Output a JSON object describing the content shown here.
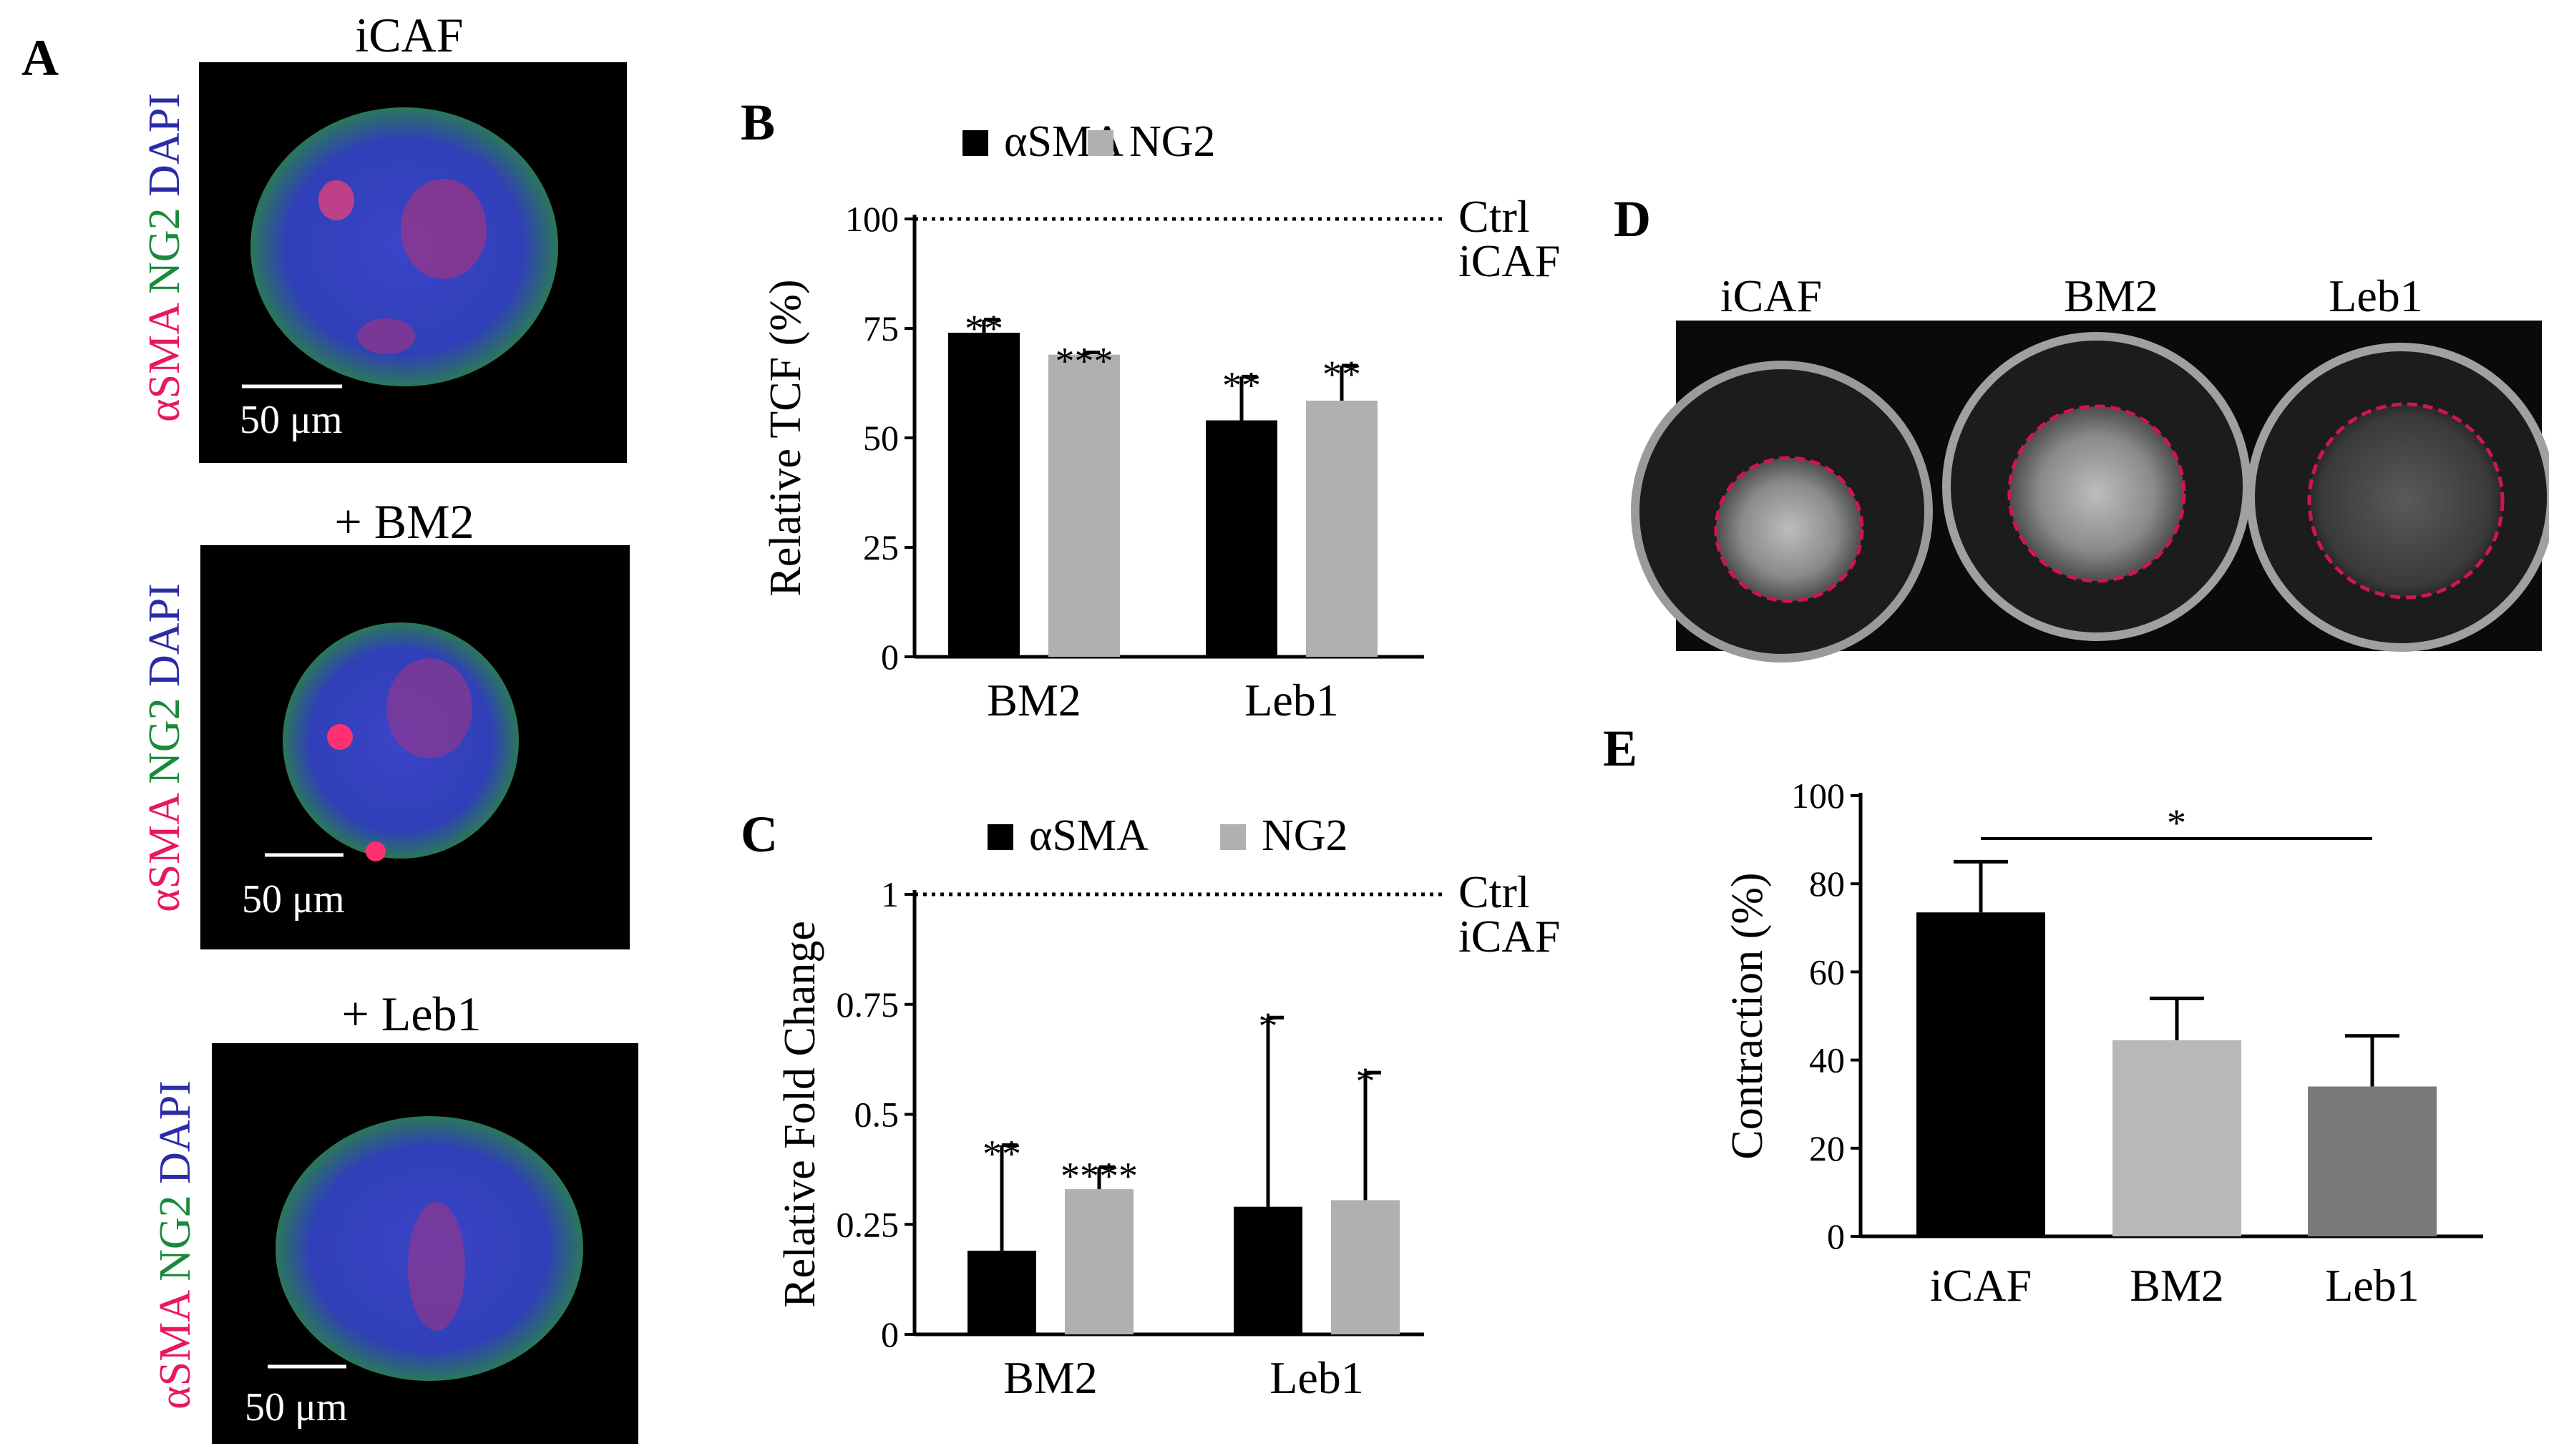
{
  "panel_labels": {
    "A": "A",
    "B": "B",
    "C": "C",
    "D": "D",
    "E": "E"
  },
  "panel_a": {
    "images": [
      {
        "title": "iCAF",
        "scale_bar": "50 μm"
      },
      {
        "title": "+ BM2",
        "scale_bar": "50 μm"
      },
      {
        "title": "+ Leb1",
        "scale_bar": "50 μm"
      }
    ],
    "stain_label": {
      "alpha": "αSMA",
      "ng2": "NG2",
      "dapi": "DAPI"
    },
    "colors": {
      "alpha": "#e8195a",
      "ng2": "#1a8a3a",
      "dapi": "#2b2ba8"
    }
  },
  "panel_d": {
    "labels": [
      "iCAF",
      "BM2",
      "Leb1"
    ],
    "outline_color": "#d0135a"
  },
  "chart_data": [
    {
      "panel": "B",
      "type": "bar",
      "categories": [
        "BM2",
        "Leb1"
      ],
      "series": [
        {
          "name": "αSMA",
          "color": "#000000",
          "values": [
            74,
            54
          ],
          "errors": [
            3,
            10
          ],
          "stars": [
            "**",
            "**"
          ]
        },
        {
          "name": "NG2",
          "color": "#b0b0b0",
          "values": [
            69,
            58.5
          ],
          "errors": [
            0.5,
            8
          ],
          "stars": [
            "***",
            "**"
          ]
        }
      ],
      "ylabel": "Relative TCF (%)",
      "ylim": [
        0,
        100
      ],
      "yticks": [
        "0",
        "25",
        "50",
        "75",
        "100"
      ],
      "reference_line": {
        "value": 100,
        "label_line1": "Ctrl",
        "label_line2": "iCAF"
      },
      "legend": "top"
    },
    {
      "panel": "C",
      "type": "bar",
      "categories": [
        "BM2",
        "Leb1"
      ],
      "series": [
        {
          "name": "αSMA",
          "color": "#000000",
          "values": [
            0.19,
            0.29
          ],
          "errors": [
            0.24,
            0.43
          ],
          "stars": [
            "**",
            "*"
          ]
        },
        {
          "name": "NG2",
          "color": "#b0b0b0",
          "values": [
            0.33,
            0.305
          ],
          "errors": [
            0.05,
            0.29
          ],
          "stars": [
            "****",
            "*"
          ]
        }
      ],
      "ylabel": "Relative Fold Change",
      "ylim": [
        0,
        1
      ],
      "yticks": [
        "0",
        "0.25",
        "0.5",
        "0.75",
        "1"
      ],
      "reference_line": {
        "value": 1,
        "label_line1": "Ctrl",
        "label_line2": "iCAF"
      },
      "legend": "top"
    },
    {
      "panel": "E",
      "type": "bar",
      "categories": [
        "iCAF",
        "BM2",
        "Leb1"
      ],
      "values": [
        73.5,
        44.5,
        34
      ],
      "errors": [
        11.5,
        9.5,
        11.5
      ],
      "colors": [
        "#000000",
        "#b8b8b8",
        "#7a7a7a"
      ],
      "ylabel": "Contraction (%)",
      "ylim": [
        0,
        100
      ],
      "yticks": [
        "0",
        "20",
        "40",
        "60",
        "80",
        "100"
      ],
      "significance": {
        "from": "iCAF",
        "to": "Leb1",
        "label": "*"
      }
    }
  ]
}
